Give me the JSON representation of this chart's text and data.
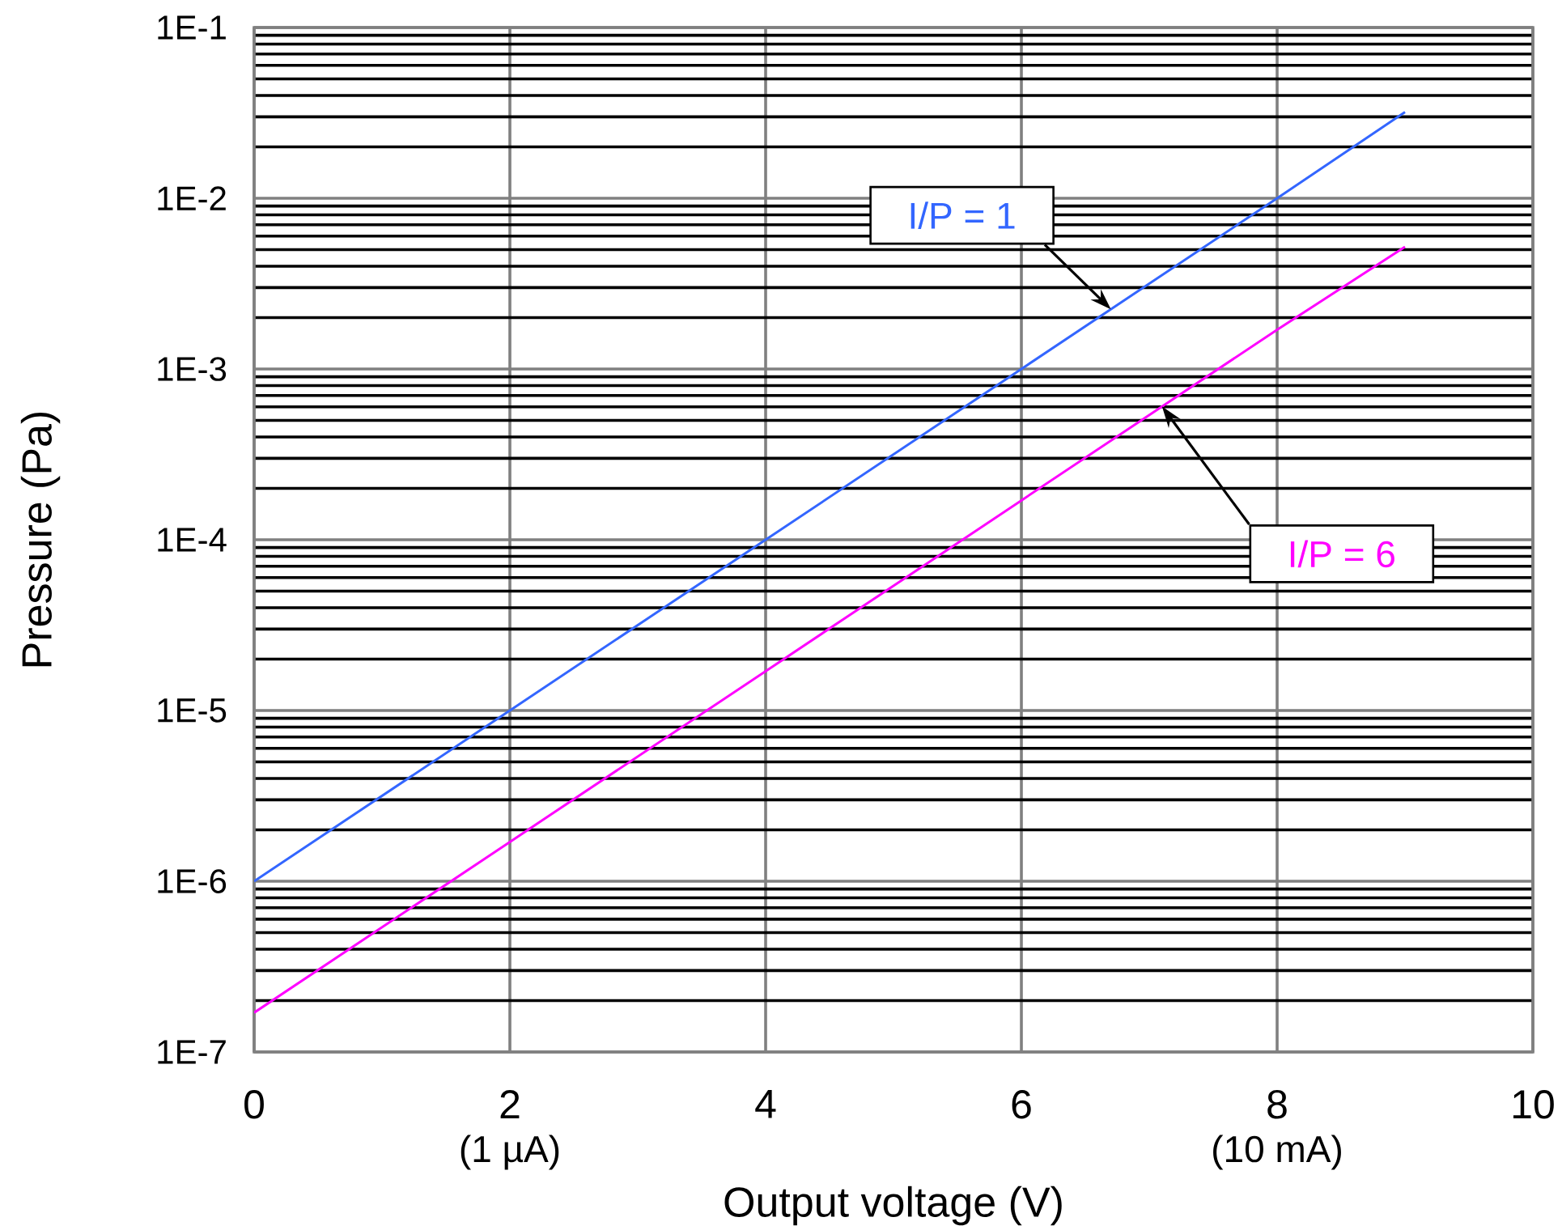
{
  "chart_data": {
    "type": "line",
    "xlabel": "Output voltage (V)",
    "ylabel": "Pressure (Pa)",
    "x": [
      0,
      2,
      4,
      6,
      8,
      9
    ],
    "series": [
      {
        "name": "I/P = 1",
        "color": "#3366ff",
        "values": [
          1e-06,
          1e-05,
          0.0001,
          0.001,
          0.01,
          0.032
        ]
      },
      {
        "name": "I/P = 6",
        "color": "#ff00ff",
        "values": [
          1.7e-07,
          1.7e-06,
          1.7e-05,
          0.00017,
          0.0017,
          0.0052
        ]
      }
    ],
    "xlim": [
      0,
      10
    ],
    "xticks": [
      0,
      2,
      4,
      6,
      8,
      10
    ],
    "ylim": [
      1e-07,
      0.1
    ],
    "yticks": [
      {
        "value": 1e-07,
        "label": "1E-7"
      },
      {
        "value": 1e-06,
        "label": "1E-6"
      },
      {
        "value": 1e-05,
        "label": "1E-5"
      },
      {
        "value": 0.0001,
        "label": "1E-4"
      },
      {
        "value": 0.001,
        "label": "1E-3"
      },
      {
        "value": 0.01,
        "label": "1E-2"
      },
      {
        "value": 0.1,
        "label": "1E-1"
      }
    ],
    "log": "y",
    "grid": true,
    "annotations": [
      "(1 µA)",
      "(10 mA)"
    ]
  }
}
